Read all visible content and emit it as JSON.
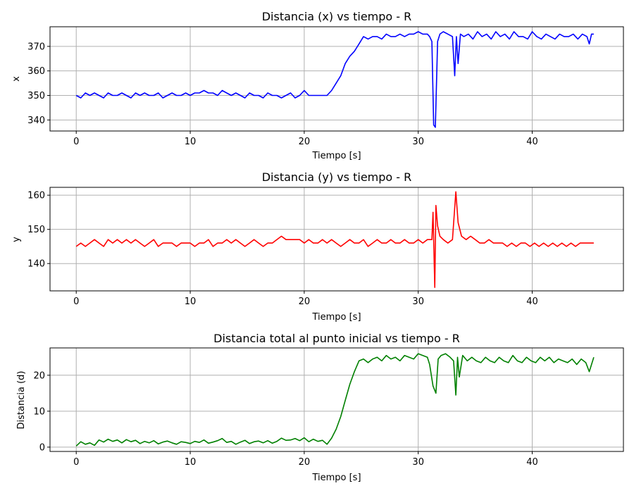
{
  "chart_data": [
    {
      "type": "line",
      "title": "Distancia (x) vs tiempo - R",
      "xlabel": "Tiempo [s]",
      "ylabel": "x",
      "xlim": [
        -2.3,
        48
      ],
      "ylim": [
        335.5,
        378
      ],
      "xticks": [
        0,
        10,
        20,
        30,
        40
      ],
      "yticks": [
        340,
        350,
        360,
        370
      ],
      "grid": true,
      "color": "#0000ff",
      "series": [
        {
          "x": [
            0,
            0.4,
            0.8,
            1.2,
            1.6,
            2.0,
            2.4,
            2.8,
            3.2,
            3.6,
            4.0,
            4.4,
            4.8,
            5.2,
            5.6,
            6.0,
            6.4,
            6.8,
            7.2,
            7.6,
            8.0,
            8.4,
            8.8,
            9.2,
            9.6,
            10.0,
            10.4,
            10.8,
            11.2,
            11.6,
            12.0,
            12.4,
            12.8,
            13.2,
            13.6,
            14.0,
            14.4,
            14.8,
            15.2,
            15.6,
            16.0,
            16.4,
            16.8,
            17.2,
            17.6,
            18.0,
            18.4,
            18.8,
            19.2,
            19.6,
            20.0,
            20.4,
            20.8,
            21.2,
            21.6,
            22.0,
            22.4,
            22.8,
            23.2,
            23.6,
            24.0,
            24.4,
            24.8,
            25.2,
            25.6,
            26.0,
            26.4,
            26.8,
            27.2,
            27.6,
            28.0,
            28.4,
            28.8,
            29.2,
            29.6,
            30.0,
            30.4,
            30.8,
            31.0,
            31.2,
            31.35,
            31.5,
            31.7,
            31.9,
            32.2,
            32.6,
            33.0,
            33.2,
            33.35,
            33.5,
            33.7,
            34.0,
            34.4,
            34.8,
            35.2,
            35.6,
            36.0,
            36.4,
            36.8,
            37.2,
            37.6,
            38.0,
            38.4,
            38.8,
            39.2,
            39.6,
            40.0,
            40.4,
            40.8,
            41.2,
            41.6,
            42.0,
            42.4,
            42.8,
            43.2,
            43.6,
            44.0,
            44.4,
            44.8,
            45.0,
            45.2,
            45.4
          ],
          "y": [
            350,
            349,
            351,
            350,
            351,
            350,
            349,
            351,
            350,
            350,
            351,
            350,
            349,
            351,
            350,
            351,
            350,
            350,
            351,
            349,
            350,
            351,
            350,
            350,
            351,
            350,
            351,
            351,
            352,
            351,
            351,
            350,
            352,
            351,
            350,
            351,
            350,
            349,
            351,
            350,
            350,
            349,
            351,
            350,
            350,
            349,
            350,
            351,
            349,
            350,
            352,
            350,
            350,
            350,
            350,
            350,
            352,
            355,
            358,
            363,
            366,
            368,
            371,
            374,
            373,
            374,
            374,
            373,
            375,
            374,
            374,
            375,
            374,
            375,
            375,
            376,
            375,
            375,
            374,
            372,
            338,
            337,
            372,
            375,
            376,
            375,
            374,
            358,
            374,
            363,
            375,
            374,
            375,
            373,
            376,
            374,
            375,
            373,
            376,
            374,
            375,
            373,
            376,
            374,
            374,
            373,
            376,
            374,
            373,
            375,
            374,
            373,
            375,
            374,
            374,
            375,
            373,
            375,
            374,
            371,
            375,
            375
          ]
        }
      ]
    },
    {
      "type": "line",
      "title": "Distancia (y) vs tiempo - R",
      "xlabel": "Tiempo [s]",
      "ylabel": "y",
      "xlim": [
        -2.3,
        48
      ],
      "ylim": [
        132,
        162.3
      ],
      "xticks": [
        0,
        10,
        20,
        30,
        40
      ],
      "yticks": [
        140,
        150,
        160
      ],
      "grid": true,
      "color": "#ff0000",
      "series": [
        {
          "x": [
            0,
            0.4,
            0.8,
            1.2,
            1.6,
            2.0,
            2.4,
            2.8,
            3.2,
            3.6,
            4.0,
            4.4,
            4.8,
            5.2,
            5.6,
            6.0,
            6.4,
            6.8,
            7.2,
            7.6,
            8.0,
            8.4,
            8.8,
            9.2,
            9.6,
            10.0,
            10.4,
            10.8,
            11.2,
            11.6,
            12.0,
            12.4,
            12.8,
            13.2,
            13.6,
            14.0,
            14.4,
            14.8,
            15.2,
            15.6,
            16.0,
            16.4,
            16.8,
            17.2,
            17.6,
            18.0,
            18.4,
            18.8,
            19.2,
            19.6,
            20.0,
            20.4,
            20.8,
            21.2,
            21.6,
            22.0,
            22.4,
            22.8,
            23.2,
            23.6,
            24.0,
            24.4,
            24.8,
            25.2,
            25.6,
            26.0,
            26.4,
            26.8,
            27.2,
            27.6,
            28.0,
            28.4,
            28.8,
            29.2,
            29.6,
            30.0,
            30.4,
            30.8,
            31.2,
            31.3,
            31.45,
            31.55,
            31.7,
            31.9,
            32.2,
            32.6,
            33.0,
            33.3,
            33.5,
            33.8,
            34.2,
            34.6,
            35.0,
            35.4,
            35.8,
            36.2,
            36.6,
            37.0,
            37.4,
            37.8,
            38.2,
            38.6,
            39.0,
            39.4,
            39.8,
            40.2,
            40.6,
            41.0,
            41.4,
            41.8,
            42.2,
            42.6,
            43.0,
            43.4,
            43.8,
            44.2,
            44.6,
            45.0,
            45.4
          ],
          "y": [
            145,
            146,
            145,
            146,
            147,
            146,
            145,
            147,
            146,
            147,
            146,
            147,
            146,
            147,
            146,
            145,
            146,
            147,
            145,
            146,
            146,
            146,
            145,
            146,
            146,
            146,
            145,
            146,
            146,
            147,
            145,
            146,
            146,
            147,
            146,
            147,
            146,
            145,
            146,
            147,
            146,
            145,
            146,
            146,
            147,
            148,
            147,
            147,
            147,
            147,
            146,
            147,
            146,
            146,
            147,
            146,
            147,
            146,
            145,
            146,
            147,
            146,
            146,
            147,
            145,
            146,
            147,
            146,
            146,
            147,
            146,
            146,
            147,
            146,
            146,
            147,
            146,
            147,
            147,
            155,
            133,
            157,
            151,
            148,
            147,
            146,
            147,
            161,
            152,
            148,
            147,
            148,
            147,
            146,
            146,
            147,
            146,
            146,
            146,
            145,
            146,
            145,
            146,
            146,
            145,
            146,
            145,
            146,
            145,
            146,
            145,
            146,
            145,
            146,
            145,
            146,
            146,
            146,
            146
          ]
        }
      ]
    },
    {
      "type": "line",
      "title": "Distancia total al punto inicial vs tiempo - R",
      "xlabel": "Tiempo [s]",
      "ylabel": "Distancia (d)",
      "xlim": [
        -2.3,
        48
      ],
      "ylim": [
        -1.2,
        27.6
      ],
      "xticks": [
        0,
        10,
        20,
        30,
        40
      ],
      "yticks": [
        0,
        10,
        20
      ],
      "grid": true,
      "color": "#008000",
      "series": [
        {
          "x": [
            0,
            0.4,
            0.8,
            1.2,
            1.6,
            2.0,
            2.4,
            2.8,
            3.2,
            3.6,
            4.0,
            4.4,
            4.8,
            5.2,
            5.6,
            6.0,
            6.4,
            6.8,
            7.2,
            7.6,
            8.0,
            8.4,
            8.8,
            9.2,
            9.6,
            10.0,
            10.4,
            10.8,
            11.2,
            11.6,
            12.0,
            12.4,
            12.8,
            13.2,
            13.6,
            14.0,
            14.4,
            14.8,
            15.2,
            15.6,
            16.0,
            16.4,
            16.8,
            17.2,
            17.6,
            18.0,
            18.4,
            18.8,
            19.2,
            19.6,
            20.0,
            20.4,
            20.8,
            21.2,
            21.6,
            22.0,
            22.4,
            22.8,
            23.2,
            23.6,
            24.0,
            24.4,
            24.8,
            25.2,
            25.6,
            26.0,
            26.4,
            26.8,
            27.2,
            27.6,
            28.0,
            28.4,
            28.8,
            29.2,
            29.6,
            30.0,
            30.4,
            30.8,
            31.0,
            31.3,
            31.55,
            31.75,
            32.0,
            32.4,
            32.8,
            33.1,
            33.3,
            33.45,
            33.6,
            33.9,
            34.3,
            34.7,
            35.1,
            35.5,
            35.9,
            36.3,
            36.7,
            37.1,
            37.5,
            37.9,
            38.3,
            38.7,
            39.1,
            39.5,
            39.9,
            40.3,
            40.7,
            41.1,
            41.5,
            41.9,
            42.3,
            42.7,
            43.1,
            43.5,
            43.9,
            44.3,
            44.7,
            45.0,
            45.4
          ],
          "y": [
            0.3,
            1.5,
            0.8,
            1.2,
            0.5,
            2.0,
            1.4,
            2.2,
            1.6,
            2.0,
            1.2,
            2.1,
            1.5,
            1.9,
            1.0,
            1.6,
            1.2,
            1.8,
            0.9,
            1.4,
            1.7,
            1.2,
            0.8,
            1.5,
            1.3,
            1.0,
            1.6,
            1.3,
            2.0,
            1.1,
            1.4,
            1.8,
            2.4,
            1.3,
            1.6,
            0.8,
            1.4,
            1.9,
            1.0,
            1.5,
            1.7,
            1.2,
            1.8,
            1.1,
            1.6,
            2.5,
            1.9,
            2.0,
            2.4,
            1.8,
            2.6,
            1.5,
            2.2,
            1.6,
            1.9,
            0.8,
            2.5,
            5.0,
            8.5,
            13.0,
            17.5,
            21.0,
            24.0,
            24.5,
            23.5,
            24.5,
            25.0,
            24.0,
            25.5,
            24.5,
            25.0,
            24.0,
            25.5,
            25.0,
            24.5,
            26.0,
            25.5,
            25.0,
            23.0,
            17.0,
            15.0,
            24.5,
            25.5,
            26.0,
            25.0,
            24.0,
            14.5,
            25.0,
            19.5,
            25.5,
            24.0,
            25.0,
            24.0,
            23.5,
            25.0,
            24.0,
            23.5,
            25.0,
            24.0,
            23.5,
            25.5,
            24.0,
            23.5,
            25.0,
            24.0,
            23.5,
            25.0,
            24.0,
            25.0,
            23.5,
            24.5,
            24.0,
            23.5,
            24.5,
            23.0,
            24.5,
            23.5,
            21.0,
            25.0
          ]
        }
      ]
    }
  ]
}
